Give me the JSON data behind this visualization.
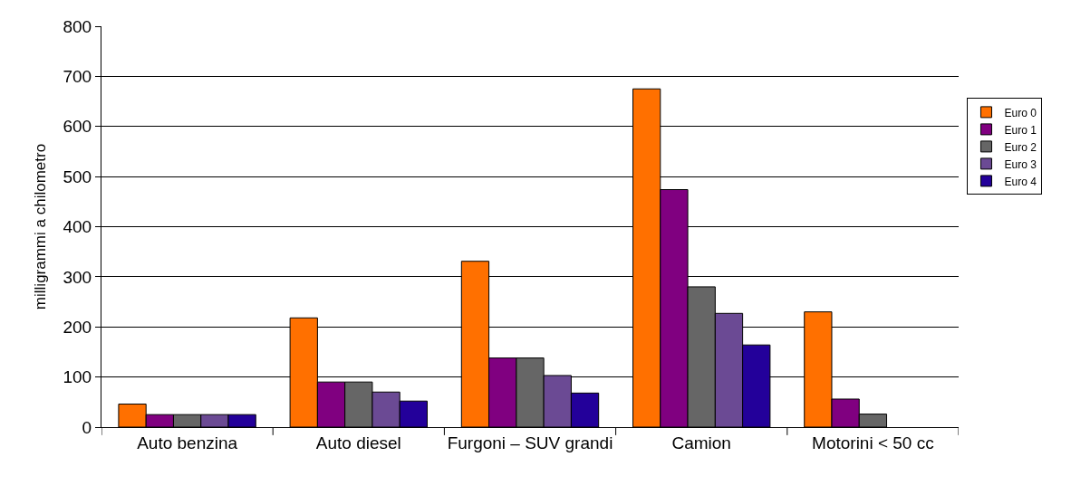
{
  "chart_data": {
    "type": "bar",
    "ylabel": "milligrammi a chilometro",
    "categories": [
      "Auto benzina",
      "Auto diesel",
      "Furgoni – SUV grandi",
      "Camion",
      "Motorini < 50 cc"
    ],
    "series": [
      {
        "name": "Euro 0",
        "color": "#ff7000",
        "values": [
          46,
          218,
          331,
          675,
          230
        ]
      },
      {
        "name": "Euro 1",
        "color": "#800080",
        "values": [
          25,
          90,
          138,
          474,
          56
        ]
      },
      {
        "name": "Euro 2",
        "color": "#666666",
        "values": [
          25,
          90,
          138,
          280,
          26
        ]
      },
      {
        "name": "Euro 3",
        "color": "#6b4a94",
        "values": [
          25,
          70,
          103,
          227,
          null
        ]
      },
      {
        "name": "Euro 4",
        "color": "#23009a",
        "values": [
          25,
          52,
          68,
          164,
          null
        ]
      }
    ],
    "ylim": [
      0,
      800
    ],
    "yticks": [
      0,
      100,
      200,
      300,
      400,
      500,
      600,
      700,
      800
    ],
    "grid": "y",
    "legend": "right"
  }
}
